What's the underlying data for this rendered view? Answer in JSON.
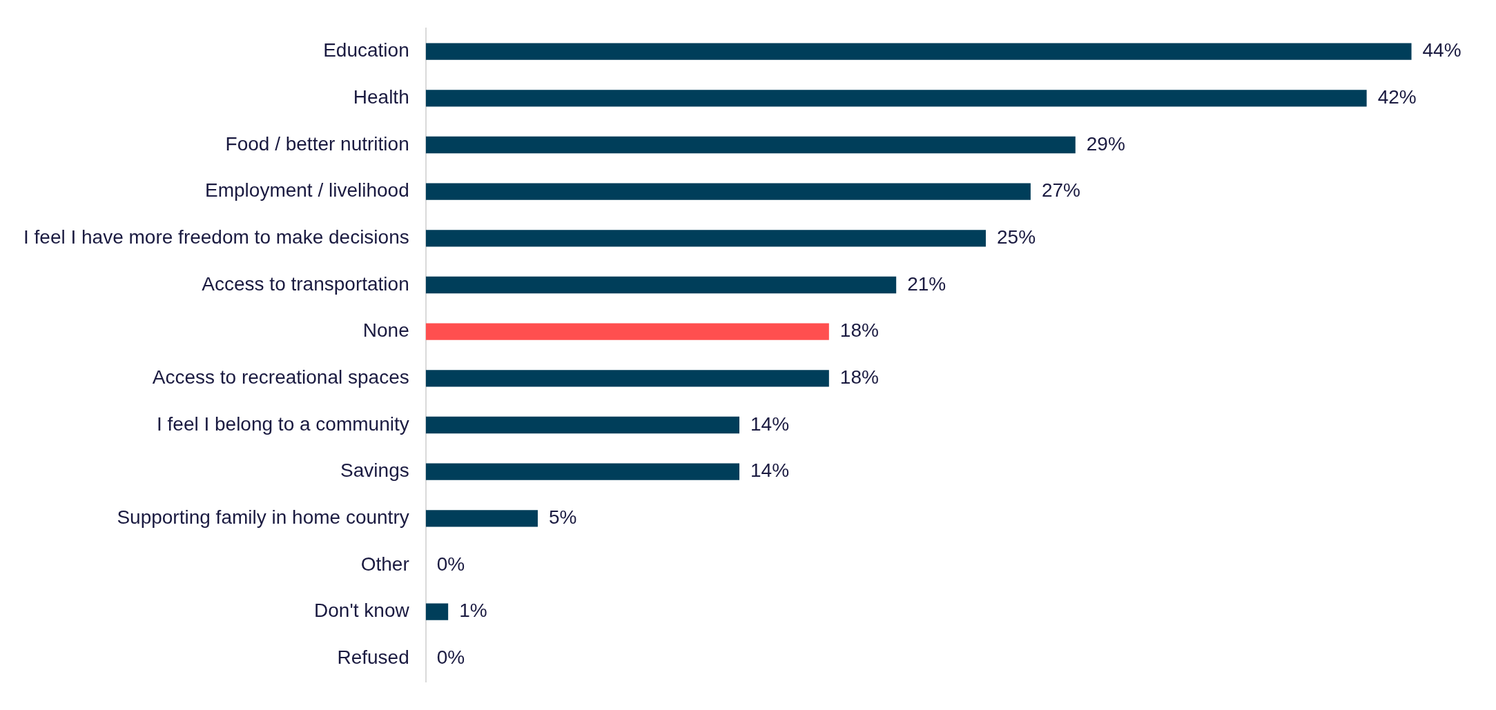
{
  "chart_data": {
    "type": "bar",
    "orientation": "horizontal",
    "categories": [
      "Education",
      "Health",
      "Food / better nutrition",
      "Employment / livelihood",
      "I feel I have more freedom to make decisions",
      "Access to transportation",
      "None",
      "Access to recreational spaces",
      "I feel I belong to a community",
      "Savings",
      "Supporting family in home country",
      "Other",
      "Don't know",
      "Refused"
    ],
    "values": [
      44,
      42,
      29,
      27,
      25,
      21,
      18,
      18,
      14,
      14,
      5,
      0,
      1,
      0
    ],
    "colors": [
      "#003e5a",
      "#003e5a",
      "#003e5a",
      "#003e5a",
      "#003e5a",
      "#003e5a",
      "#ff4f4f",
      "#003e5a",
      "#003e5a",
      "#003e5a",
      "#003e5a",
      "#003e5a",
      "#003e5a",
      "#003e5a"
    ],
    "value_labels": [
      "44%",
      "42%",
      "29%",
      "27%",
      "25%",
      "21%",
      "18%",
      "18%",
      "14%",
      "14%",
      "5%",
      "0%",
      "1%",
      "0%"
    ],
    "legend": false
  }
}
